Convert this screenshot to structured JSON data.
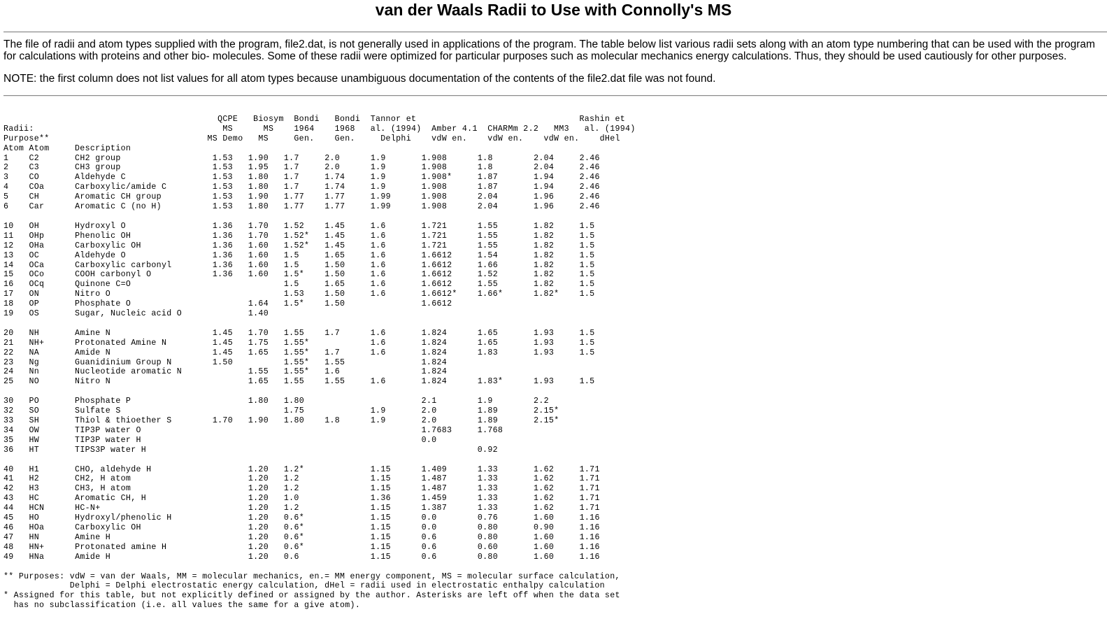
{
  "title": "van der Waals Radii to Use with Connolly's MS",
  "intro": "The file of radii and atom types supplied with the program, file2.dat, is not generally used in applications of the program. The table below list various radii sets along with an atom type numbering that can be used with the program for calculations with proteins and other bio- molecules. Some of these radii were optimized for particular purposes such as molecular mechanics energy calculations. Thus, they should be used cautiously for other purposes.",
  "note": "NOTE: the first column does not list values for all atom types because unambiguous documentation of the contents of the file2.dat file was not found.",
  "table": {
    "header_lines": [
      "",
      "                                          QCPE   Biosym  Bondi   Bondi  Tannor et                                Rashin et",
      "Radii:                                     MS      MS    1964    1968   al. (1994)  Amber 4.1  CHARMm 2.2   MM3   al. (1994)",
      "Purpose**                               MS Demo   MS     Gen.    Gen.     Delphi    vdW en.    vdW en.    vdW en.    dHel",
      "Atom Atom     Description"
    ],
    "groups": [
      [
        {
          "num": "1",
          "atom": "C2",
          "desc": "CH2 group",
          "qcpe": "1.53",
          "biosym": "1.90",
          "b64": "1.7",
          "b68": "2.0",
          "tannor": "1.9",
          "amber": "1.908",
          "charmm": "1.8",
          "mm3": "2.04",
          "rashin": "2.46"
        },
        {
          "num": "2",
          "atom": "C3",
          "desc": "CH3 group",
          "qcpe": "1.53",
          "biosym": "1.95",
          "b64": "1.7",
          "b68": "2.0",
          "tannor": "1.9",
          "amber": "1.908",
          "charmm": "1.8",
          "mm3": "2.04",
          "rashin": "2.46"
        },
        {
          "num": "3",
          "atom": "CO",
          "desc": "Aldehyde C",
          "qcpe": "1.53",
          "biosym": "1.80",
          "b64": "1.7",
          "b68": "1.74",
          "tannor": "1.9",
          "amber": "1.908*",
          "charmm": "1.87",
          "mm3": "1.94",
          "rashin": "2.46"
        },
        {
          "num": "4",
          "atom": "COa",
          "desc": "Carboxylic/amide C",
          "qcpe": "1.53",
          "biosym": "1.80",
          "b64": "1.7",
          "b68": "1.74",
          "tannor": "1.9",
          "amber": "1.908",
          "charmm": "1.87",
          "mm3": "1.94",
          "rashin": "2.46"
        },
        {
          "num": "5",
          "atom": "CH",
          "desc": "Aromatic CH group",
          "qcpe": "1.53",
          "biosym": "1.90",
          "b64": "1.77",
          "b68": "1.77",
          "tannor": "1.99",
          "amber": "1.908",
          "charmm": "2.04",
          "mm3": "1.96",
          "rashin": "2.46"
        },
        {
          "num": "6",
          "atom": "Car",
          "desc": "Aromatic C (no H)",
          "qcpe": "1.53",
          "biosym": "1.80",
          "b64": "1.77",
          "b68": "1.77",
          "tannor": "1.99",
          "amber": "1.908",
          "charmm": "2.04",
          "mm3": "1.96",
          "rashin": "2.46"
        }
      ],
      [
        {
          "num": "10",
          "atom": "OH",
          "desc": "Hydroxyl O",
          "qcpe": "1.36",
          "biosym": "1.70",
          "b64": "1.52",
          "b68": "1.45",
          "tannor": "1.6",
          "amber": "1.721",
          "charmm": "1.55",
          "mm3": "1.82",
          "rashin": "1.5"
        },
        {
          "num": "11",
          "atom": "OHp",
          "desc": "Phenolic OH",
          "qcpe": "1.36",
          "biosym": "1.70",
          "b64": "1.52*",
          "b68": "1.45",
          "tannor": "1.6",
          "amber": "1.721",
          "charmm": "1.55",
          "mm3": "1.82",
          "rashin": "1.5"
        },
        {
          "num": "12",
          "atom": "OHa",
          "desc": "Carboxylic OH",
          "qcpe": "1.36",
          "biosym": "1.60",
          "b64": "1.52*",
          "b68": "1.45",
          "tannor": "1.6",
          "amber": "1.721",
          "charmm": "1.55",
          "mm3": "1.82",
          "rashin": "1.5"
        },
        {
          "num": "13",
          "atom": "OC",
          "desc": "Aldehyde O",
          "qcpe": "1.36",
          "biosym": "1.60",
          "b64": "1.5",
          "b68": "1.65",
          "tannor": "1.6",
          "amber": "1.6612",
          "charmm": "1.54",
          "mm3": "1.82",
          "rashin": "1.5"
        },
        {
          "num": "14",
          "atom": "OCa",
          "desc": "Carboxylic carbonyl",
          "qcpe": "1.36",
          "biosym": "1.60",
          "b64": "1.5",
          "b68": "1.50",
          "tannor": "1.6",
          "amber": "1.6612",
          "charmm": "1.66",
          "mm3": "1.82",
          "rashin": "1.5"
        },
        {
          "num": "15",
          "atom": "OCo",
          "desc": "COOH carbonyl O",
          "qcpe": "1.36",
          "biosym": "1.60",
          "b64": "1.5*",
          "b68": "1.50",
          "tannor": "1.6",
          "amber": "1.6612",
          "charmm": "1.52",
          "mm3": "1.82",
          "rashin": "1.5"
        },
        {
          "num": "16",
          "atom": "OCq",
          "desc": "Quinone C=O",
          "qcpe": "",
          "biosym": "",
          "b64": "1.5",
          "b68": "1.65",
          "tannor": "1.6",
          "amber": "1.6612",
          "charmm": "1.55",
          "mm3": "1.82",
          "rashin": "1.5"
        },
        {
          "num": "17",
          "atom": "ON",
          "desc": "Nitro O",
          "qcpe": "",
          "biosym": "",
          "b64": "1.53",
          "b68": "1.50",
          "tannor": "1.6",
          "amber": "1.6612*",
          "charmm": "1.66*",
          "mm3": "1.82*",
          "rashin": "1.5"
        },
        {
          "num": "18",
          "atom": "OP",
          "desc": "Phosphate O",
          "qcpe": "",
          "biosym": "1.64",
          "b64": "1.5*",
          "b68": "1.50",
          "tannor": "",
          "amber": "1.6612",
          "charmm": "",
          "mm3": "",
          "rashin": ""
        },
        {
          "num": "19",
          "atom": "OS",
          "desc": "Sugar, Nucleic acid O",
          "qcpe": "",
          "biosym": "1.40",
          "b64": "",
          "b68": "",
          "tannor": "",
          "amber": "",
          "charmm": "",
          "mm3": "",
          "rashin": ""
        }
      ],
      [
        {
          "num": "20",
          "atom": "NH",
          "desc": "Amine N",
          "qcpe": "1.45",
          "biosym": "1.70",
          "b64": "1.55",
          "b68": "1.7",
          "tannor": "1.6",
          "amber": "1.824",
          "charmm": "1.65",
          "mm3": "1.93",
          "rashin": "1.5"
        },
        {
          "num": "21",
          "atom": "NH+",
          "desc": "Protonated Amine N",
          "qcpe": "1.45",
          "biosym": "1.75",
          "b64": "1.55*",
          "b68": "",
          "tannor": "1.6",
          "amber": "1.824",
          "charmm": "1.65",
          "mm3": "1.93",
          "rashin": "1.5"
        },
        {
          "num": "22",
          "atom": "NA",
          "desc": "Amide N",
          "qcpe": "1.45",
          "biosym": "1.65",
          "b64": "1.55*",
          "b68": "1.7",
          "tannor": "1.6",
          "amber": "1.824",
          "charmm": "1.83",
          "mm3": "1.93",
          "rashin": "1.5"
        },
        {
          "num": "23",
          "atom": "Ng",
          "desc": "Guanidinium Group N",
          "qcpe": "1.50",
          "biosym": "",
          "b64": "1.55*",
          "b68": "1.55",
          "tannor": "",
          "amber": "1.824",
          "charmm": "",
          "mm3": "",
          "rashin": ""
        },
        {
          "num": "24",
          "atom": "Nn",
          "desc": "Nucleotide aromatic N",
          "qcpe": "",
          "biosym": "1.55",
          "b64": "1.55*",
          "b68": "1.6",
          "tannor": "",
          "amber": "1.824",
          "charmm": "",
          "mm3": "",
          "rashin": ""
        },
        {
          "num": "25",
          "atom": "NO",
          "desc": "Nitro N",
          "qcpe": "",
          "biosym": "1.65",
          "b64": "1.55",
          "b68": "1.55",
          "tannor": "1.6",
          "amber": "1.824",
          "charmm": "1.83*",
          "mm3": "1.93",
          "rashin": "1.5"
        }
      ],
      [
        {
          "num": "30",
          "atom": "PO",
          "desc": "Phosphate P",
          "qcpe": "",
          "biosym": "1.80",
          "b64": "1.80",
          "b68": "",
          "tannor": "",
          "amber": "2.1",
          "charmm": "1.9",
          "mm3": "2.2",
          "rashin": ""
        },
        {
          "num": "32",
          "atom": "SO",
          "desc": "Sulfate S",
          "qcpe": "",
          "biosym": "",
          "b64": "1.75",
          "b68": "",
          "tannor": "1.9",
          "amber": "2.0",
          "charmm": "1.89",
          "mm3": "2.15*",
          "rashin": ""
        },
        {
          "num": "33",
          "atom": "SH",
          "desc": "Thiol & thioether S",
          "qcpe": "1.70",
          "biosym": "1.90",
          "b64": "1.80",
          "b68": "1.8",
          "tannor": "1.9",
          "amber": "2.0",
          "charmm": "1.89",
          "mm3": "2.15*",
          "rashin": ""
        },
        {
          "num": "34",
          "atom": "OW",
          "desc": "TIP3P water O",
          "qcpe": "",
          "biosym": "",
          "b64": "",
          "b68": "",
          "tannor": "",
          "amber": "1.7683",
          "charmm": "1.768",
          "mm3": "",
          "rashin": ""
        },
        {
          "num": "35",
          "atom": "HW",
          "desc": "TIP3P water H",
          "qcpe": "",
          "biosym": "",
          "b64": "",
          "b68": "",
          "tannor": "",
          "amber": "0.0",
          "charmm": "",
          "mm3": "",
          "rashin": ""
        },
        {
          "num": "36",
          "atom": "HT",
          "desc": "TIPS3P water H",
          "qcpe": "",
          "biosym": "",
          "b64": "",
          "b68": "",
          "tannor": "",
          "amber": "",
          "charmm": "0.92",
          "mm3": "",
          "rashin": ""
        }
      ],
      [
        {
          "num": "40",
          "atom": "H1",
          "desc": "CHO, aldehyde H",
          "qcpe": "",
          "biosym": "1.20",
          "b64": "1.2*",
          "b68": "",
          "tannor": "1.15",
          "amber": "1.409",
          "charmm": "1.33",
          "mm3": "1.62",
          "rashin": "1.71"
        },
        {
          "num": "41",
          "atom": "H2",
          "desc": "CH2, H atom",
          "qcpe": "",
          "biosym": "1.20",
          "b64": "1.2",
          "b68": "",
          "tannor": "1.15",
          "amber": "1.487",
          "charmm": "1.33",
          "mm3": "1.62",
          "rashin": "1.71"
        },
        {
          "num": "42",
          "atom": "H3",
          "desc": "CH3, H atom",
          "qcpe": "",
          "biosym": "1.20",
          "b64": "1.2",
          "b68": "",
          "tannor": "1.15",
          "amber": "1.487",
          "charmm": "1.33",
          "mm3": "1.62",
          "rashin": "1.71"
        },
        {
          "num": "43",
          "atom": "HC",
          "desc": "Aromatic CH, H",
          "qcpe": "",
          "biosym": "1.20",
          "b64": "1.0",
          "b68": "",
          "tannor": "1.36",
          "amber": "1.459",
          "charmm": "1.33",
          "mm3": "1.62",
          "rashin": "1.71"
        },
        {
          "num": "44",
          "atom": "HCN",
          "desc": "HC-N+",
          "qcpe": "",
          "biosym": "1.20",
          "b64": "1.2",
          "b68": "",
          "tannor": "1.15",
          "amber": "1.387",
          "charmm": "1.33",
          "mm3": "1.62",
          "rashin": "1.71"
        },
        {
          "num": "45",
          "atom": "HO",
          "desc": "Hydroxyl/phenolic H",
          "qcpe": "",
          "biosym": "1.20",
          "b64": "0.6*",
          "b68": "",
          "tannor": "1.15",
          "amber": "0.0",
          "charmm": "0.76",
          "mm3": "1.60",
          "rashin": "1.16"
        },
        {
          "num": "46",
          "atom": "HOa",
          "desc": "Carboxylic OH",
          "qcpe": "",
          "biosym": "1.20",
          "b64": "0.6*",
          "b68": "",
          "tannor": "1.15",
          "amber": "0.0",
          "charmm": "0.80",
          "mm3": "0.90",
          "rashin": "1.16"
        },
        {
          "num": "47",
          "atom": "HN",
          "desc": "Amine H",
          "qcpe": "",
          "biosym": "1.20",
          "b64": "0.6*",
          "b68": "",
          "tannor": "1.15",
          "amber": "0.6",
          "charmm": "0.80",
          "mm3": "1.60",
          "rashin": "1.16"
        },
        {
          "num": "48",
          "atom": "HN+",
          "desc": "Protonated amine H",
          "qcpe": "",
          "biosym": "1.20",
          "b64": "0.6*",
          "b68": "",
          "tannor": "1.15",
          "amber": "0.6",
          "charmm": "0.60",
          "mm3": "1.60",
          "rashin": "1.16"
        },
        {
          "num": "49",
          "atom": "HNa",
          "desc": "Amide H",
          "qcpe": "",
          "biosym": "1.20",
          "b64": "0.6",
          "b68": "",
          "tannor": "1.15",
          "amber": "0.6",
          "charmm": "0.80",
          "mm3": "1.60",
          "rashin": "1.16"
        }
      ]
    ],
    "footnotes": [
      "** Purposes: vdW = van der Waals, MM = molecular mechanics, en.= MM energy component, MS = molecular surface calculation,",
      "             Delphi = Delphi electrostatic energy calculation, dHel = radii used in electrostatic enthalpy calculation",
      "* Assigned for this table, but not explicitly defined or assigned by the author. Asterisks are left off when the data set",
      "  has no subclassification (i.e. all values the same for a give atom)."
    ]
  }
}
